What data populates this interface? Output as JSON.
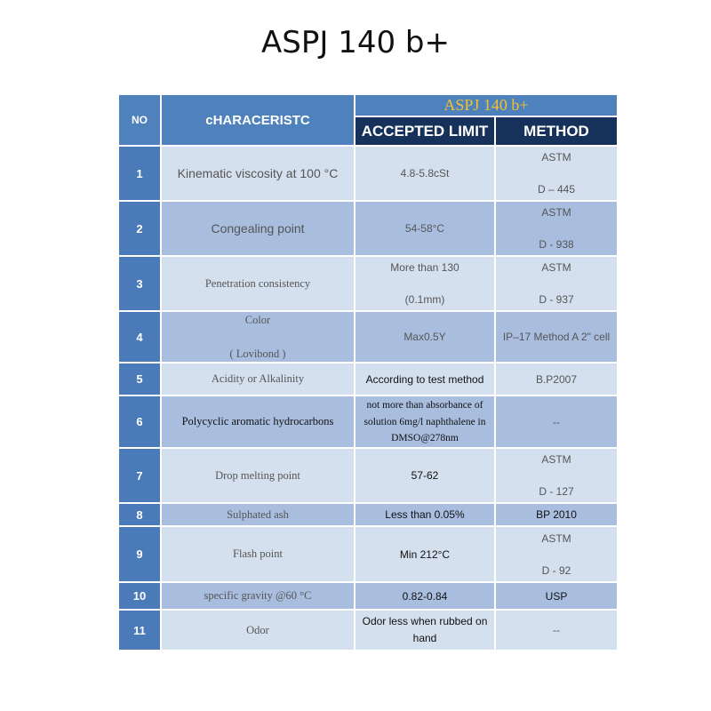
{
  "title": "ASPJ 140 b+",
  "header": {
    "no": "NO",
    "characteristic": "cHARACERISTC",
    "product": "ASPJ 140 b+",
    "limit": "ACCEPTED LIMIT",
    "method": "METHOD"
  },
  "rows": [
    {
      "no": "1",
      "characteristic": "Kinematic viscosity at 100 °C",
      "limit": "4.8-5.8cSt",
      "method": "ASTM\n\nD – 445"
    },
    {
      "no": "2",
      "characteristic": "Congealing point",
      "limit": "54-58°C",
      "method": "ASTM\n\nD - 938"
    },
    {
      "no": "3",
      "characteristic": "Penetration consistency",
      "limit": "More than 130\n\n(0.1mm)",
      "method": "ASTM\n\nD - 937"
    },
    {
      "no": "4",
      "characteristic": "Color\n\n( Lovibond )",
      "limit": "Max0.5Y",
      "method": "IP–17 Method  A 2\" cell"
    },
    {
      "no": "5",
      "characteristic": "Acidity  or  Alkalinity",
      "limit": "According to test method",
      "method": "B.P2007"
    },
    {
      "no": "6",
      "characteristic": "Polycyclic aromatic hydrocarbons",
      "limit": "not more than absorbance of solution 6mg/l naphthalene in DMSO@278nm",
      "method": "--"
    },
    {
      "no": "7",
      "characteristic": "Drop melting point",
      "limit": "57-62",
      "method": "ASTM\n\nD - 127"
    },
    {
      "no": "8",
      "characteristic": "Sulphated ash",
      "limit": "Less than 0.05%",
      "method": "BP 2010"
    },
    {
      "no": "9",
      "characteristic": "Flash point",
      "limit": "Min 212°C",
      "method": "ASTM\n\nD - 92"
    },
    {
      "no": "10",
      "characteristic": "specific gravity @60 °C",
      "limit": "0.82-0.84",
      "method": "USP"
    },
    {
      "no": "11",
      "characteristic": "Odor",
      "limit": "Odor less when rubbed on hand",
      "method": "--"
    }
  ]
}
